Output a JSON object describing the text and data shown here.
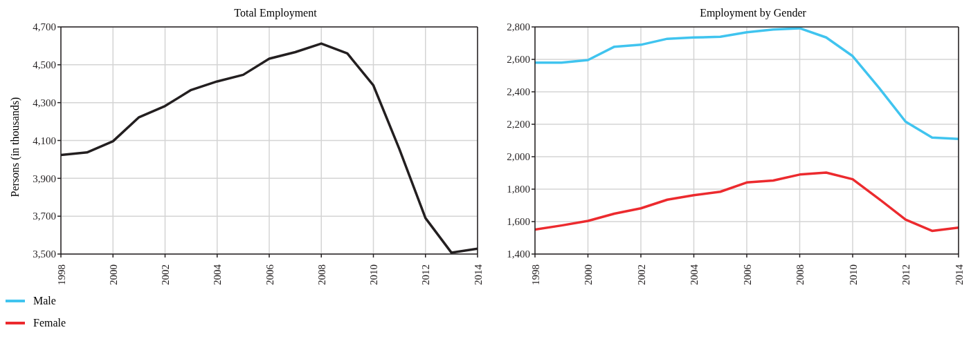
{
  "chart_data": [
    {
      "type": "line",
      "title": "Total Employment",
      "ylabel": "Persons (in thousands)",
      "x": [
        1998,
        1999,
        2000,
        2001,
        2002,
        2003,
        2004,
        2005,
        2006,
        2007,
        2008,
        2009,
        2010,
        2011,
        2012,
        2013,
        2014
      ],
      "series": [
        {
          "color": "#231f20",
          "values": [
            4023,
            4037,
            4096,
            4223,
            4282,
            4367,
            4412,
            4447,
            4532,
            4567,
            4612,
            4560,
            4391,
            4054,
            3690,
            3507,
            3528
          ]
        }
      ],
      "xlim": [
        1998,
        2014
      ],
      "xticks": [
        1998,
        2000,
        2002,
        2004,
        2006,
        2008,
        2010,
        2012,
        2014
      ],
      "ylim": [
        3500,
        4700
      ],
      "yticks": [
        {
          "value": 3500,
          "label": "3,500"
        },
        {
          "value": 3700,
          "label": "3,700"
        },
        {
          "value": 3900,
          "label": "3,900"
        },
        {
          "value": 4100,
          "label": "4,100"
        },
        {
          "value": 4300,
          "label": "4,300"
        },
        {
          "value": 4500,
          "label": "4,500"
        },
        {
          "value": 4700,
          "label": "4,700"
        }
      ],
      "grid": true,
      "marker": "none",
      "line_style": "solid"
    },
    {
      "type": "line",
      "title": "Employment by Gender",
      "x": [
        1998,
        1999,
        2000,
        2001,
        2002,
        2003,
        2004,
        2005,
        2006,
        2007,
        2008,
        2009,
        2010,
        2011,
        2012,
        2013,
        2014
      ],
      "series": [
        {
          "name": "Male",
          "color": "#40c4ef",
          "values": [
            2580,
            2580,
            2596,
            2678,
            2690,
            2727,
            2735,
            2739,
            2767,
            2784,
            2792,
            2735,
            2620,
            2424,
            2216,
            2118,
            2110
          ]
        },
        {
          "name": "Female",
          "color": "#ec2a2e",
          "values": [
            1551,
            1576,
            1604,
            1649,
            1682,
            1735,
            1763,
            1784,
            1841,
            1853,
            1890,
            1902,
            1861,
            1739,
            1612,
            1543,
            1563
          ]
        }
      ],
      "xlim": [
        1998,
        2014
      ],
      "xticks": [
        1998,
        2000,
        2002,
        2004,
        2006,
        2008,
        2010,
        2012,
        2014
      ],
      "ylim": [
        1400,
        2800
      ],
      "yticks": [
        {
          "value": 1400,
          "label": "1,400"
        },
        {
          "value": 1600,
          "label": "1,600"
        },
        {
          "value": 1800,
          "label": "1,800"
        },
        {
          "value": 2000,
          "label": "2,000"
        },
        {
          "value": 2200,
          "label": "2,200"
        },
        {
          "value": 2400,
          "label": "2,400"
        },
        {
          "value": 2600,
          "label": "2,600"
        },
        {
          "value": 2800,
          "label": "2,800"
        }
      ],
      "grid": true,
      "legend": "bottom left",
      "marker": "none",
      "line_style": "solid"
    }
  ]
}
